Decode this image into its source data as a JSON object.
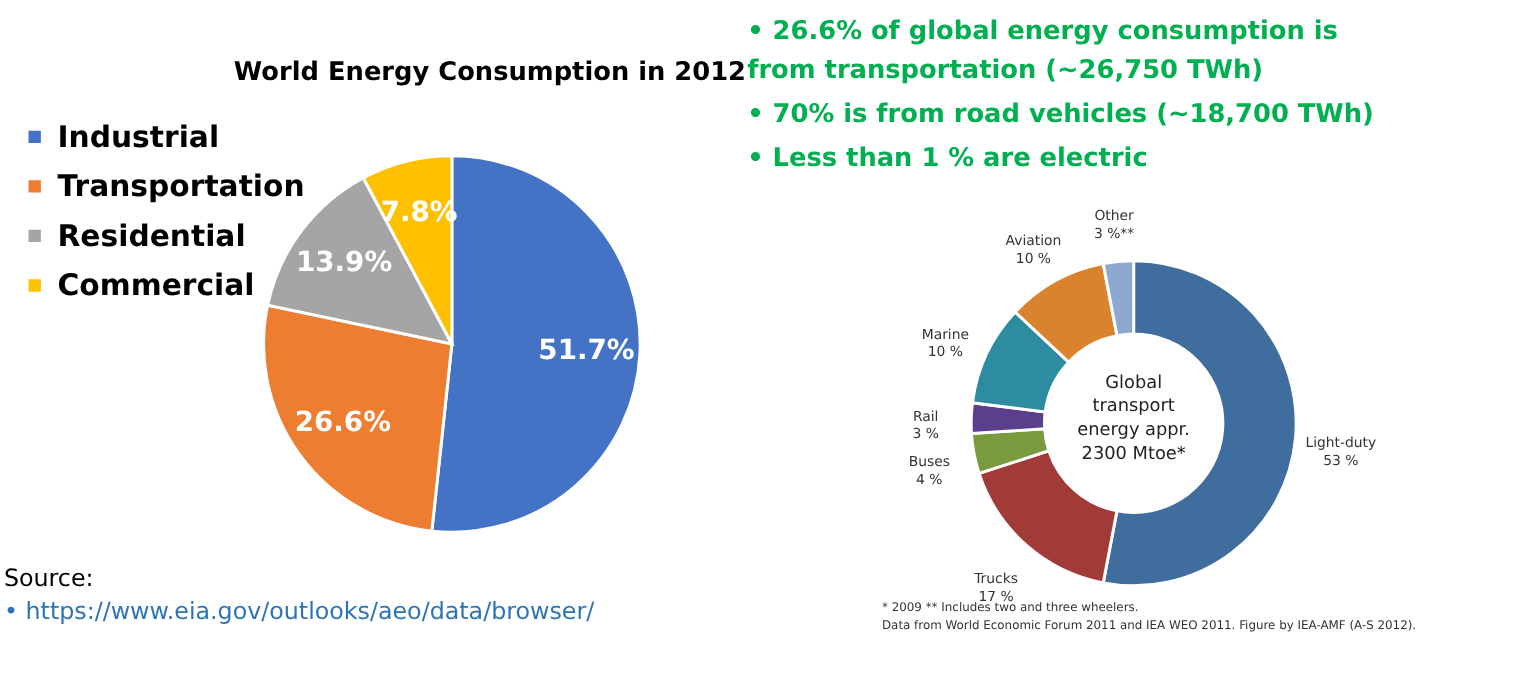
{
  "chart_data": [
    {
      "type": "pie",
      "title": "World Energy Consumption in 2012",
      "categories": [
        "Industrial",
        "Transportation",
        "Residential",
        "Commercial"
      ],
      "values": [
        51.7,
        26.6,
        13.9,
        7.8
      ],
      "colors": [
        "#4472c4",
        "#ed7d31",
        "#a5a5a5",
        "#ffc000"
      ],
      "value_labels": [
        "51.7%",
        "26.6%",
        "13.9%",
        "7.8%"
      ],
      "legend": "top left",
      "annotations": [
        "Source:",
        "•  https://www.eia.gov/outlooks/aeo/data/browser/"
      ]
    },
    {
      "type": "donut",
      "categories": [
        "Light-duty",
        "Trucks",
        "Buses",
        "Rail",
        "Marine",
        "Aviation",
        "Other"
      ],
      "values": [
        53,
        17,
        4,
        3,
        10,
        10,
        3
      ],
      "colors": [
        "#3f6e9e",
        "#a23b37",
        "#7a9a3e",
        "#5b3f8c",
        "#2e8ca0",
        "#d9832e",
        "#8ea9cf"
      ],
      "value_labels": [
        "53 %",
        "17 %",
        "4 %",
        "3 %",
        "10 %",
        "10 %",
        "3 %**"
      ],
      "legend": false,
      "annotations": [
        "•   26.6% of global energy consumption is\nfrom transportation (~26,750 TWh)",
        "•   70% is from road vehicles (~18,700 TWh)",
        "•   Less than 1 % are electric",
        "Global\ntransport\nenergy appr.\n2300 Mtoe*",
        "* 2009  ** Includes two and three wheelers.",
        "Data from World Economic Forum 2011 and IEA WEO 2011.  Figure  by IEA-AMF (A-S 2012)."
      ]
    }
  ]
}
